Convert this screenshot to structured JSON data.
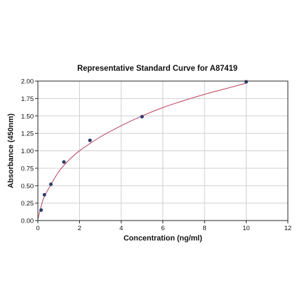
{
  "chart_data": {
    "type": "scatter",
    "title": "Representative Standard Curve for A87419",
    "xlabel": "Concentration (ng/ml)",
    "ylabel": "Absorbance (450nm)",
    "xlim": [
      0,
      12
    ],
    "ylim": [
      0,
      2
    ],
    "xticks": [
      "0",
      "2",
      "4",
      "6",
      "8",
      "10",
      "12"
    ],
    "yticks": [
      "0.00",
      "0.25",
      "0.50",
      "0.75",
      "1.00",
      "1.25",
      "1.50",
      "1.75",
      "2.00"
    ],
    "grid": true,
    "points": {
      "x": [
        0.156,
        0.313,
        0.625,
        1.25,
        2.5,
        5,
        10
      ],
      "y": [
        0.15,
        0.37,
        0.52,
        0.84,
        1.15,
        1.49,
        1.99
      ]
    },
    "fit_curve": {
      "type": "line",
      "x": [
        0,
        0.25,
        0.5,
        1,
        1.5,
        2,
        3,
        4,
        5,
        6,
        7,
        8,
        9,
        10
      ],
      "y": [
        0.02,
        0.3,
        0.45,
        0.7,
        0.87,
        1.0,
        1.2,
        1.36,
        1.5,
        1.62,
        1.72,
        1.81,
        1.89,
        1.97
      ]
    },
    "colors": {
      "point": "#2e3d6e",
      "curve": "#c0506a",
      "grid": "#cfcfcf"
    }
  }
}
